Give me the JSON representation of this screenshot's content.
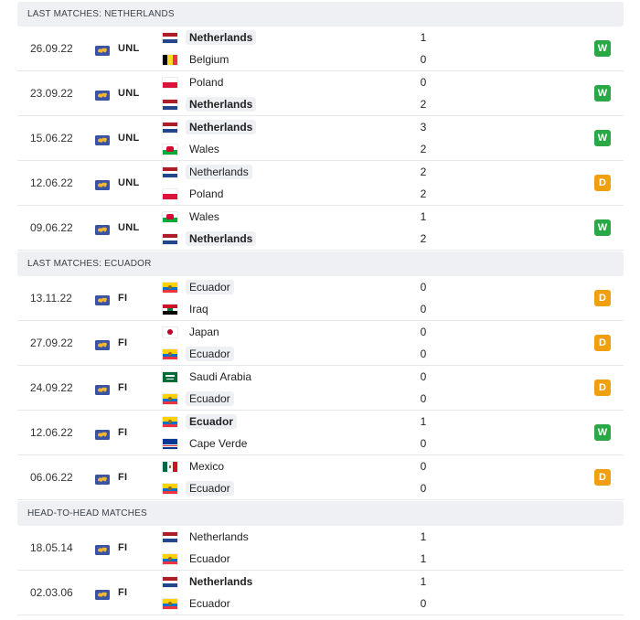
{
  "sections": [
    {
      "title": "LAST MATCHES: NETHERLANDS",
      "matches": [
        {
          "date": "26.09.22",
          "comp": "UNL",
          "home": "Netherlands",
          "home_flag": "netherlands",
          "home_score": "1",
          "away": "Belgium",
          "away_flag": "belgium",
          "away_score": "0",
          "winner": "home",
          "highlight": "home",
          "result": "W"
        },
        {
          "date": "23.09.22",
          "comp": "UNL",
          "home": "Poland",
          "home_flag": "poland",
          "home_score": "0",
          "away": "Netherlands",
          "away_flag": "netherlands",
          "away_score": "2",
          "winner": "away",
          "highlight": "away",
          "result": "W"
        },
        {
          "date": "15.06.22",
          "comp": "UNL",
          "home": "Netherlands",
          "home_flag": "netherlands",
          "home_score": "3",
          "away": "Wales",
          "away_flag": "wales",
          "away_score": "2",
          "winner": "home",
          "highlight": "home",
          "result": "W"
        },
        {
          "date": "12.06.22",
          "comp": "UNL",
          "home": "Netherlands",
          "home_flag": "netherlands",
          "home_score": "2",
          "away": "Poland",
          "away_flag": "poland",
          "away_score": "2",
          "winner": "",
          "highlight": "home",
          "result": "D"
        },
        {
          "date": "09.06.22",
          "comp": "UNL",
          "home": "Wales",
          "home_flag": "wales",
          "home_score": "1",
          "away": "Netherlands",
          "away_flag": "netherlands",
          "away_score": "2",
          "winner": "away",
          "highlight": "away",
          "result": "W"
        }
      ]
    },
    {
      "title": "LAST MATCHES: ECUADOR",
      "matches": [
        {
          "date": "13.11.22",
          "comp": "FI",
          "home": "Ecuador",
          "home_flag": "ecuador",
          "home_score": "0",
          "away": "Iraq",
          "away_flag": "iraq",
          "away_score": "0",
          "winner": "",
          "highlight": "home",
          "result": "D"
        },
        {
          "date": "27.09.22",
          "comp": "FI",
          "home": "Japan",
          "home_flag": "japan",
          "home_score": "0",
          "away": "Ecuador",
          "away_flag": "ecuador",
          "away_score": "0",
          "winner": "",
          "highlight": "away",
          "result": "D"
        },
        {
          "date": "24.09.22",
          "comp": "FI",
          "home": "Saudi Arabia",
          "home_flag": "saudi",
          "home_score": "0",
          "away": "Ecuador",
          "away_flag": "ecuador",
          "away_score": "0",
          "winner": "",
          "highlight": "away",
          "result": "D"
        },
        {
          "date": "12.06.22",
          "comp": "FI",
          "home": "Ecuador",
          "home_flag": "ecuador",
          "home_score": "1",
          "away": "Cape Verde",
          "away_flag": "capeverde",
          "away_score": "0",
          "winner": "home",
          "highlight": "home",
          "result": "W"
        },
        {
          "date": "06.06.22",
          "comp": "FI",
          "home": "Mexico",
          "home_flag": "mexico",
          "home_score": "0",
          "away": "Ecuador",
          "away_flag": "ecuador",
          "away_score": "0",
          "winner": "",
          "highlight": "away",
          "result": "D"
        }
      ]
    },
    {
      "title": "HEAD-TO-HEAD MATCHES",
      "matches": [
        {
          "date": "18.05.14",
          "comp": "FI",
          "home": "Netherlands",
          "home_flag": "netherlands",
          "home_score": "1",
          "away": "Ecuador",
          "away_flag": "ecuador",
          "away_score": "1",
          "winner": "",
          "highlight": "",
          "result": ""
        },
        {
          "date": "02.03.06",
          "comp": "FI",
          "home": "Netherlands",
          "home_flag": "netherlands",
          "home_score": "1",
          "away": "Ecuador",
          "away_flag": "ecuador",
          "away_score": "0",
          "winner": "home",
          "highlight": "",
          "result": ""
        }
      ]
    }
  ],
  "icons": {
    "competition": "world-globe-icon"
  }
}
